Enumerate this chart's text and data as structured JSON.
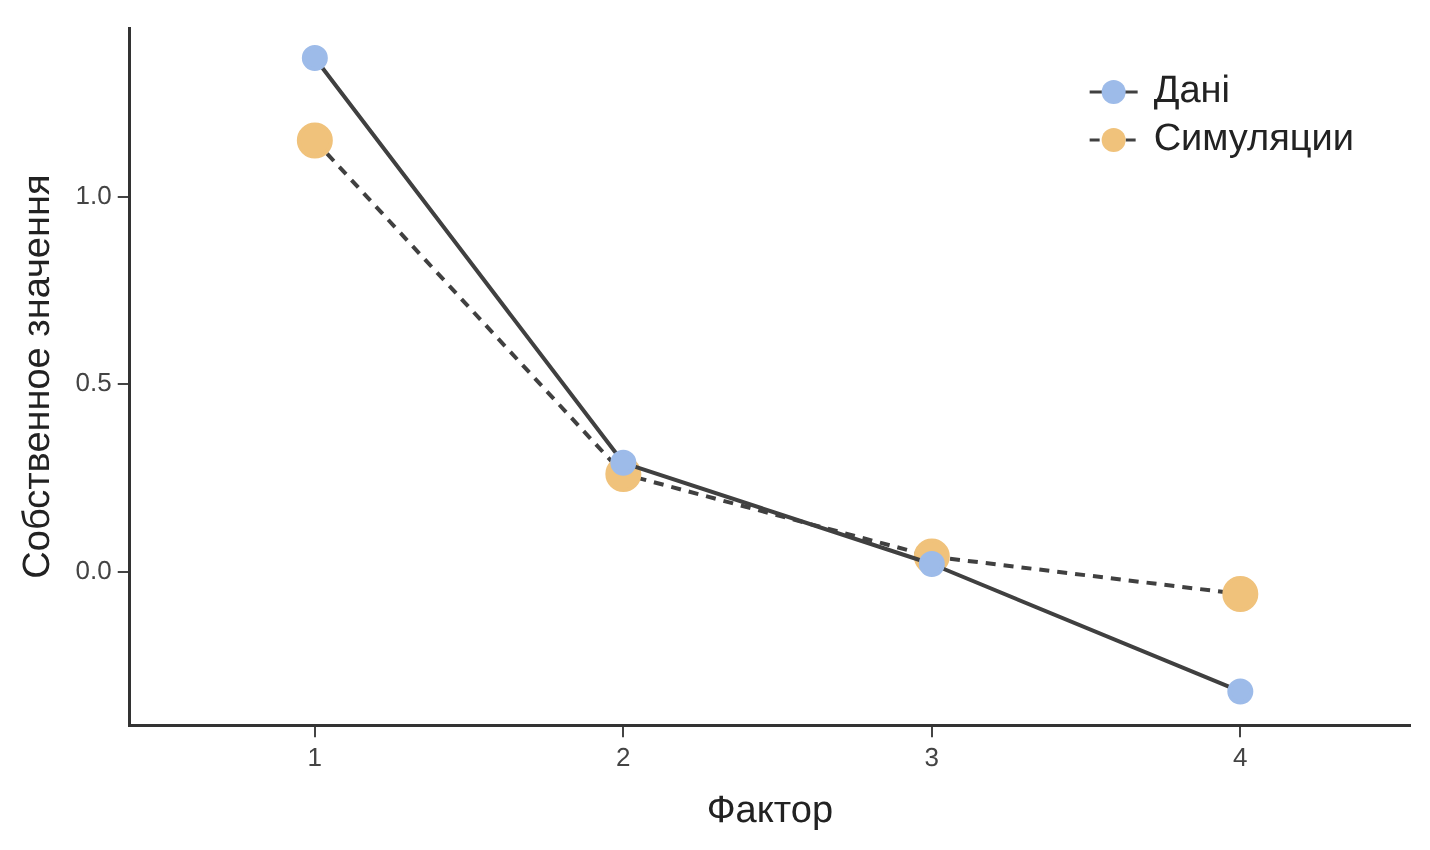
{
  "chart_data": {
    "type": "line",
    "xlabel": "Фактор",
    "ylabel": "Собственное значення",
    "xlim": [
      0.4,
      4.55
    ],
    "xticks": [
      1,
      2,
      3,
      4
    ],
    "ylim": [
      -0.41,
      1.45
    ],
    "yticks": [
      {
        "value": 0,
        "label": "0.0"
      },
      {
        "value": 0.5,
        "label": "0.5"
      },
      {
        "value": 1,
        "label": "1.0"
      }
    ],
    "grid": false,
    "legend": "top right",
    "marker": "circle",
    "series": [
      {
        "name": "Дані",
        "color": "#9dbbe9",
        "x": [
          1,
          2,
          3,
          4
        ],
        "values": [
          1.37,
          0.29,
          0.02,
          -0.32
        ],
        "line_style": "solid"
      },
      {
        "name": "Симуляции",
        "color": "#f0c27b",
        "x": [
          1,
          2,
          3,
          4
        ],
        "values": [
          1.15,
          0.26,
          0.04,
          -0.06
        ],
        "line_style": "dashed"
      }
    ]
  }
}
